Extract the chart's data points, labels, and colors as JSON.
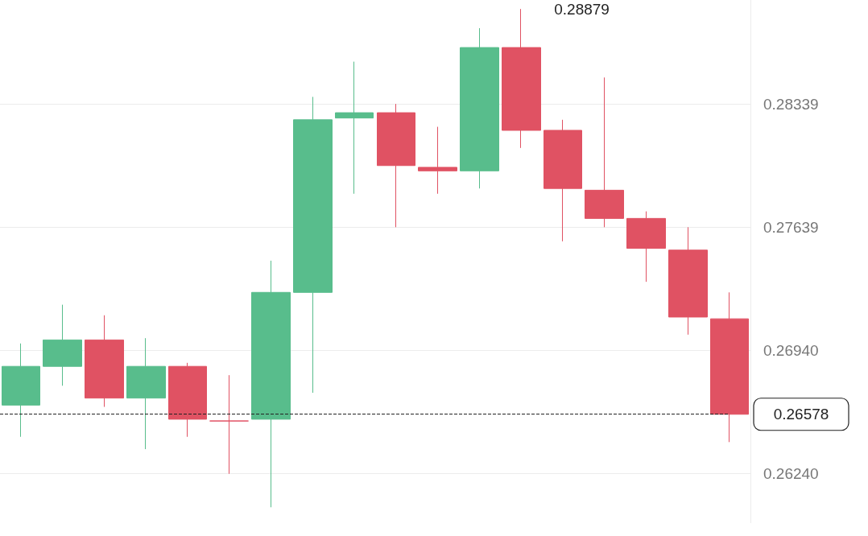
{
  "chart_data": {
    "type": "candlestick",
    "categories": [
      null,
      null,
      null,
      null,
      null,
      null,
      null,
      null,
      null,
      null,
      null,
      null,
      null,
      null,
      null,
      null,
      null,
      null
    ],
    "ohlc": [
      [
        0.2663,
        0.2698,
        0.2645,
        0.2685
      ],
      [
        0.2685,
        0.272,
        0.2674,
        0.27
      ],
      [
        0.27,
        0.2714,
        0.2662,
        0.2667
      ],
      [
        0.2667,
        0.2701,
        0.2638,
        0.2685
      ],
      [
        0.2685,
        0.2687,
        0.2645,
        0.2655
      ],
      [
        0.2654,
        0.268,
        0.2624,
        0.2654
      ],
      [
        0.2655,
        0.2745,
        0.2605,
        0.2727
      ],
      [
        0.2727,
        0.2838,
        0.267,
        0.2825
      ],
      [
        0.2826,
        0.2858,
        0.2783,
        0.2829
      ],
      [
        0.2829,
        0.2834,
        0.2764,
        0.2799
      ],
      [
        0.2798,
        0.2821,
        0.2783,
        0.2796
      ],
      [
        0.2796,
        0.2877,
        0.2786,
        0.2866
      ],
      [
        0.2866,
        0.28879,
        0.2809,
        0.2819
      ],
      [
        0.2819,
        0.2825,
        0.2756,
        0.2786
      ],
      [
        0.2785,
        0.2849,
        0.2764,
        0.2769
      ],
      [
        0.2769,
        0.2773,
        0.2733,
        0.2752
      ],
      [
        0.2751,
        0.2764,
        0.2703,
        0.2713
      ],
      [
        0.2712,
        0.2727,
        0.2642,
        0.26578
      ]
    ],
    "colors": [
      "#58bd8c",
      "#58bd8c",
      "#e05263",
      "#58bd8c",
      "#e05263",
      "#e05263",
      "#58bd8c",
      "#58bd8c",
      "#58bd8c",
      "#e05263",
      "#e05263",
      "#58bd8c",
      "#e05263",
      "#e05263",
      "#e05263",
      "#e05263",
      "#e05263",
      "#e05263"
    ],
    "ylim": [
      0.2596,
      0.2893
    ],
    "yticks": [
      {
        "value": 0.2624,
        "label": "0.26240"
      },
      {
        "value": 0.2694,
        "label": "0.26940"
      },
      0.27639,
      0.28339
    ],
    "tick_labels": "y",
    "grid": "y",
    "ref_lines": [
      {
        "axis": "y",
        "value": 0.26578,
        "label": "0.26578",
        "color": "#222222",
        "line_style": "dashed"
      }
    ],
    "annotations": [
      "0.28879"
    ]
  }
}
